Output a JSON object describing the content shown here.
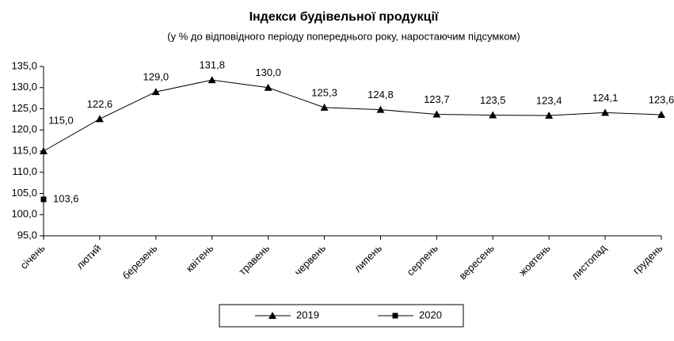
{
  "chart_data": {
    "type": "line",
    "title": "Індекси будівельної продукції",
    "subtitle": "(у % до відповідного періоду попереднього року, наростаючим підсумком)",
    "categories": [
      "січень",
      "лютий",
      "березень",
      "квітень",
      "травень",
      "червень",
      "липень",
      "серпень",
      "вересень",
      "жовтень",
      "листопад",
      "грудень"
    ],
    "series": [
      {
        "name": "2019",
        "color": "#000000",
        "marker": "triangle",
        "values": [
          115.0,
          122.6,
          129.0,
          131.8,
          130.0,
          125.3,
          124.8,
          123.7,
          123.5,
          123.4,
          124.1,
          123.6
        ],
        "value_labels": [
          "115,0",
          "122,6",
          "129,0",
          "131,8",
          "130,0",
          "125,3",
          "124,8",
          "123,7",
          "123,5",
          "123,4",
          "124,1",
          "123,6"
        ]
      },
      {
        "name": "2020",
        "color": "#000000",
        "marker": "square",
        "values": [
          103.6,
          null,
          null,
          null,
          null,
          null,
          null,
          null,
          null,
          null,
          null,
          null
        ],
        "value_labels": [
          "103,6",
          null,
          null,
          null,
          null,
          null,
          null,
          null,
          null,
          null,
          null,
          null
        ]
      }
    ],
    "ylim": [
      95,
      135
    ],
    "yticks": [
      {
        "value": 95,
        "label": "95,0"
      },
      {
        "value": 100,
        "label": "100,0"
      },
      {
        "value": 105,
        "label": "105,0"
      },
      {
        "value": 110,
        "label": "110,0"
      },
      {
        "value": 115,
        "label": "115,0"
      },
      {
        "value": 120,
        "label": "120,0"
      },
      {
        "value": 125,
        "label": "125,0"
      },
      {
        "value": 130,
        "label": "130,0"
      },
      {
        "value": 135,
        "label": "135,0"
      }
    ],
    "grid": false,
    "legend": "bottom"
  }
}
